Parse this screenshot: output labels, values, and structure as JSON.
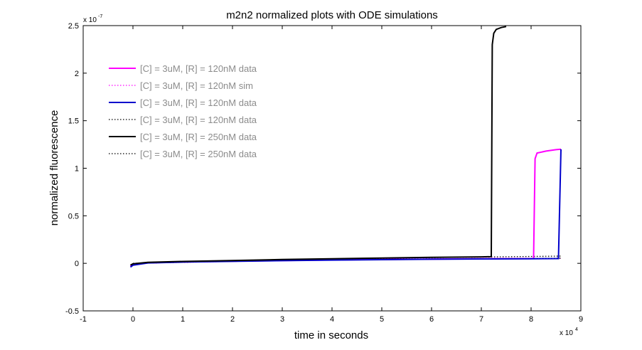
{
  "chart_data": {
    "type": "line",
    "title": "m2n2 normalized plots with ODE simulations",
    "xlabel": "time in seconds",
    "ylabel": "normalized fluorescence",
    "x_multiplier_base": "x 10",
    "x_multiplier_exp": "4",
    "y_multiplier_base": "x 10",
    "y_multiplier_exp": "-7",
    "xlim": [
      -1,
      9
    ],
    "ylim": [
      -0.5,
      2.5
    ],
    "xticks": [
      "-1",
      "0",
      "1",
      "2",
      "3",
      "4",
      "5",
      "6",
      "7",
      "8",
      "9"
    ],
    "yticks": [
      "-0.5",
      "0",
      "0.5",
      "1",
      "1.5",
      "2",
      "2.5"
    ],
    "legend_position": "top-left",
    "grid": false,
    "series": [
      {
        "name": "[C] = 3uM, [R] = 120nM data",
        "color": "#ff00ff",
        "style": "solid",
        "points": [
          [
            -0.05,
            -0.03
          ],
          [
            0,
            -0.01
          ],
          [
            0.3,
            0.005
          ],
          [
            1,
            0.015
          ],
          [
            2,
            0.023
          ],
          [
            3,
            0.03
          ],
          [
            4,
            0.036
          ],
          [
            5,
            0.041
          ],
          [
            6,
            0.045
          ],
          [
            7,
            0.048
          ],
          [
            8.05,
            0.05
          ],
          [
            8.08,
            1.1
          ],
          [
            8.12,
            1.16
          ],
          [
            8.3,
            1.18
          ],
          [
            8.5,
            1.195
          ],
          [
            8.6,
            1.2
          ]
        ]
      },
      {
        "name": "[C] = 3uM, [R] = 120nM sim",
        "color": "#ff00ff",
        "style": "dotted",
        "points": [
          [
            0,
            0
          ],
          [
            1,
            0.01
          ],
          [
            2,
            0.02
          ],
          [
            3,
            0.028
          ],
          [
            4,
            0.035
          ],
          [
            5,
            0.04
          ],
          [
            6,
            0.044
          ],
          [
            7,
            0.047
          ],
          [
            8,
            0.05
          ],
          [
            8.6,
            0.052
          ]
        ]
      },
      {
        "name": "[C] = 3uM, [R] = 120nM data",
        "color": "#0000cc",
        "style": "solid",
        "points": [
          [
            -0.05,
            -0.04
          ],
          [
            0,
            -0.02
          ],
          [
            0.3,
            0.004
          ],
          [
            1,
            0.013
          ],
          [
            2,
            0.021
          ],
          [
            3,
            0.028
          ],
          [
            4,
            0.034
          ],
          [
            5,
            0.039
          ],
          [
            6,
            0.043
          ],
          [
            7,
            0.046
          ],
          [
            8,
            0.048
          ],
          [
            8.55,
            0.05
          ],
          [
            8.6,
            1.2
          ]
        ]
      },
      {
        "name": "[C] = 3uM, [R] = 120nM data",
        "color": "#000000",
        "style": "dotted",
        "points": [
          [
            0,
            0
          ],
          [
            1,
            0.012
          ],
          [
            2,
            0.022
          ],
          [
            3,
            0.03
          ],
          [
            4,
            0.037
          ],
          [
            5,
            0.043
          ],
          [
            6,
            0.047
          ],
          [
            7,
            0.05
          ],
          [
            8,
            0.052
          ],
          [
            8.6,
            0.054
          ]
        ]
      },
      {
        "name": "[C] = 3uM, [R] = 250nM data",
        "color": "#000000",
        "style": "solid",
        "points": [
          [
            -0.05,
            -0.02
          ],
          [
            0,
            -0.005
          ],
          [
            0.3,
            0.01
          ],
          [
            1,
            0.02
          ],
          [
            2,
            0.03
          ],
          [
            3,
            0.04
          ],
          [
            4,
            0.048
          ],
          [
            5,
            0.056
          ],
          [
            6,
            0.063
          ],
          [
            7,
            0.068
          ],
          [
            7.2,
            0.07
          ],
          [
            7.22,
            2.3
          ],
          [
            7.25,
            2.42
          ],
          [
            7.3,
            2.46
          ],
          [
            7.4,
            2.48
          ],
          [
            7.5,
            2.49
          ]
        ]
      },
      {
        "name": "[C] = 3uM, [R] = 250nM data",
        "color": "#000000",
        "style": "dotted",
        "points": [
          [
            0,
            0
          ],
          [
            1,
            0.012
          ],
          [
            2,
            0.024
          ],
          [
            3,
            0.034
          ],
          [
            4,
            0.043
          ],
          [
            5,
            0.052
          ],
          [
            6,
            0.06
          ],
          [
            7,
            0.066
          ],
          [
            8,
            0.072
          ],
          [
            8.6,
            0.076
          ]
        ]
      }
    ]
  }
}
